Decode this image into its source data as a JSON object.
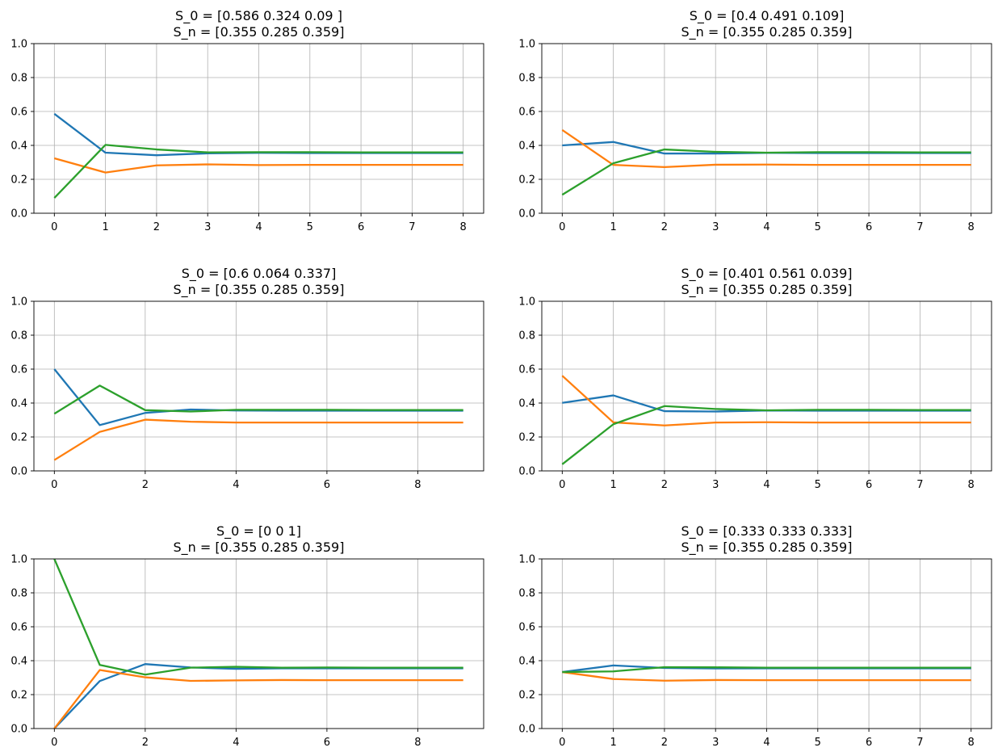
{
  "colors": {
    "series": [
      "#1f77b4",
      "#ff7f0e",
      "#2ca02c"
    ],
    "grid": "#b0b0b0",
    "axes": "#000000"
  },
  "chart_data": [
    {
      "type": "line",
      "title": [
        "S_0 = [0.586 0.324 0.09 ]",
        "S_n = [0.355 0.285 0.359]"
      ],
      "xlabel": "",
      "ylabel": "",
      "xlim": [
        -0.4,
        8.4
      ],
      "ylim": [
        0,
        1
      ],
      "xticks": [
        0,
        1,
        2,
        3,
        4,
        5,
        6,
        7,
        8
      ],
      "yticks": [
        0.0,
        0.2,
        0.4,
        0.6,
        0.8,
        1.0
      ],
      "grid": true,
      "x": [
        0,
        1,
        2,
        3,
        4,
        5,
        6,
        7,
        8
      ],
      "series": [
        {
          "values": [
            0.586,
            0.357,
            0.342,
            0.353,
            0.356,
            0.355,
            0.355,
            0.355,
            0.355
          ]
        },
        {
          "values": [
            0.324,
            0.24,
            0.282,
            0.288,
            0.284,
            0.285,
            0.285,
            0.285,
            0.285
          ]
        },
        {
          "values": [
            0.09,
            0.403,
            0.376,
            0.359,
            0.36,
            0.36,
            0.359,
            0.359,
            0.359
          ]
        }
      ]
    },
    {
      "type": "line",
      "title": [
        "S_0 = [0.4   0.491 0.109]",
        "S_n = [0.355 0.285 0.359]"
      ],
      "xlabel": "",
      "ylabel": "",
      "xlim": [
        -0.4,
        8.4
      ],
      "ylim": [
        0,
        1
      ],
      "xticks": [
        0,
        1,
        2,
        3,
        4,
        5,
        6,
        7,
        8
      ],
      "yticks": [
        0.0,
        0.2,
        0.4,
        0.6,
        0.8,
        1.0
      ],
      "grid": true,
      "x": [
        0,
        1,
        2,
        3,
        4,
        5,
        6,
        7,
        8
      ],
      "series": [
        {
          "values": [
            0.4,
            0.42,
            0.352,
            0.352,
            0.356,
            0.355,
            0.355,
            0.355,
            0.355
          ]
        },
        {
          "values": [
            0.491,
            0.285,
            0.272,
            0.286,
            0.287,
            0.285,
            0.285,
            0.285,
            0.285
          ]
        },
        {
          "values": [
            0.109,
            0.295,
            0.376,
            0.362,
            0.357,
            0.36,
            0.36,
            0.359,
            0.359
          ]
        }
      ]
    },
    {
      "type": "line",
      "title": [
        "S_0 = [0.6   0.064 0.337]",
        "S_n = [0.355 0.285 0.359]"
      ],
      "xlabel": "",
      "ylabel": "",
      "xlim": [
        -0.45,
        9.45
      ],
      "ylim": [
        0,
        1
      ],
      "xticks": [
        0,
        2,
        4,
        6,
        8
      ],
      "yticks": [
        0.0,
        0.2,
        0.4,
        0.6,
        0.8,
        1.0
      ],
      "grid": true,
      "x": [
        0,
        1,
        2,
        3,
        4,
        5,
        6,
        7,
        8,
        9
      ],
      "series": [
        {
          "values": [
            0.6,
            0.27,
            0.342,
            0.362,
            0.356,
            0.355,
            0.355,
            0.355,
            0.355,
            0.355
          ]
        },
        {
          "values": [
            0.064,
            0.23,
            0.302,
            0.29,
            0.285,
            0.285,
            0.285,
            0.285,
            0.285,
            0.285
          ]
        },
        {
          "values": [
            0.337,
            0.503,
            0.358,
            0.35,
            0.36,
            0.36,
            0.36,
            0.359,
            0.359,
            0.359
          ]
        }
      ]
    },
    {
      "type": "line",
      "title": [
        "S_0 = [0.401 0.561 0.039]",
        "S_n = [0.355 0.285 0.359]"
      ],
      "xlabel": "",
      "ylabel": "",
      "xlim": [
        -0.4,
        8.4
      ],
      "ylim": [
        0,
        1
      ],
      "xticks": [
        0,
        1,
        2,
        3,
        4,
        5,
        6,
        7,
        8
      ],
      "yticks": [
        0.0,
        0.2,
        0.4,
        0.6,
        0.8,
        1.0
      ],
      "grid": true,
      "x": [
        0,
        1,
        2,
        3,
        4,
        5,
        6,
        7,
        8
      ],
      "series": [
        {
          "values": [
            0.401,
            0.445,
            0.352,
            0.35,
            0.356,
            0.355,
            0.355,
            0.355,
            0.355
          ]
        },
        {
          "values": [
            0.561,
            0.286,
            0.268,
            0.285,
            0.287,
            0.285,
            0.285,
            0.285,
            0.285
          ]
        },
        {
          "values": [
            0.039,
            0.275,
            0.382,
            0.365,
            0.357,
            0.36,
            0.36,
            0.359,
            0.359
          ]
        }
      ]
    },
    {
      "type": "line",
      "title": [
        "S_0 = [0 0 1]",
        "S_n = [0.355 0.285 0.359]"
      ],
      "xlabel": "",
      "ylabel": "",
      "xlim": [
        -0.45,
        9.45
      ],
      "ylim": [
        0,
        1
      ],
      "xticks": [
        0,
        2,
        4,
        6,
        8
      ],
      "yticks": [
        0.0,
        0.2,
        0.4,
        0.6,
        0.8,
        1.0
      ],
      "grid": true,
      "x": [
        0,
        1,
        2,
        3,
        4,
        5,
        6,
        7,
        8,
        9
      ],
      "series": [
        {
          "values": [
            0.0,
            0.28,
            0.38,
            0.36,
            0.352,
            0.355,
            0.355,
            0.355,
            0.355,
            0.355
          ]
        },
        {
          "values": [
            0.0,
            0.345,
            0.302,
            0.281,
            0.284,
            0.286,
            0.285,
            0.285,
            0.285,
            0.285
          ]
        },
        {
          "values": [
            1.0,
            0.375,
            0.318,
            0.359,
            0.364,
            0.359,
            0.36,
            0.359,
            0.359,
            0.359
          ]
        }
      ]
    },
    {
      "type": "line",
      "title": [
        "S_0 = [0.333 0.333 0.333]",
        "S_n = [0.355 0.285 0.359]"
      ],
      "xlabel": "",
      "ylabel": "",
      "xlim": [
        -0.4,
        8.4
      ],
      "ylim": [
        0,
        1
      ],
      "xticks": [
        0,
        1,
        2,
        3,
        4,
        5,
        6,
        7,
        8
      ],
      "yticks": [
        0.0,
        0.2,
        0.4,
        0.6,
        0.8,
        1.0
      ],
      "grid": true,
      "x": [
        0,
        1,
        2,
        3,
        4,
        5,
        6,
        7,
        8
      ],
      "series": [
        {
          "values": [
            0.333,
            0.372,
            0.357,
            0.354,
            0.355,
            0.355,
            0.355,
            0.355,
            0.355
          ]
        },
        {
          "values": [
            0.333,
            0.292,
            0.282,
            0.286,
            0.285,
            0.285,
            0.285,
            0.285,
            0.285
          ]
        },
        {
          "values": [
            0.333,
            0.337,
            0.362,
            0.361,
            0.359,
            0.359,
            0.359,
            0.359,
            0.359
          ]
        }
      ]
    }
  ]
}
